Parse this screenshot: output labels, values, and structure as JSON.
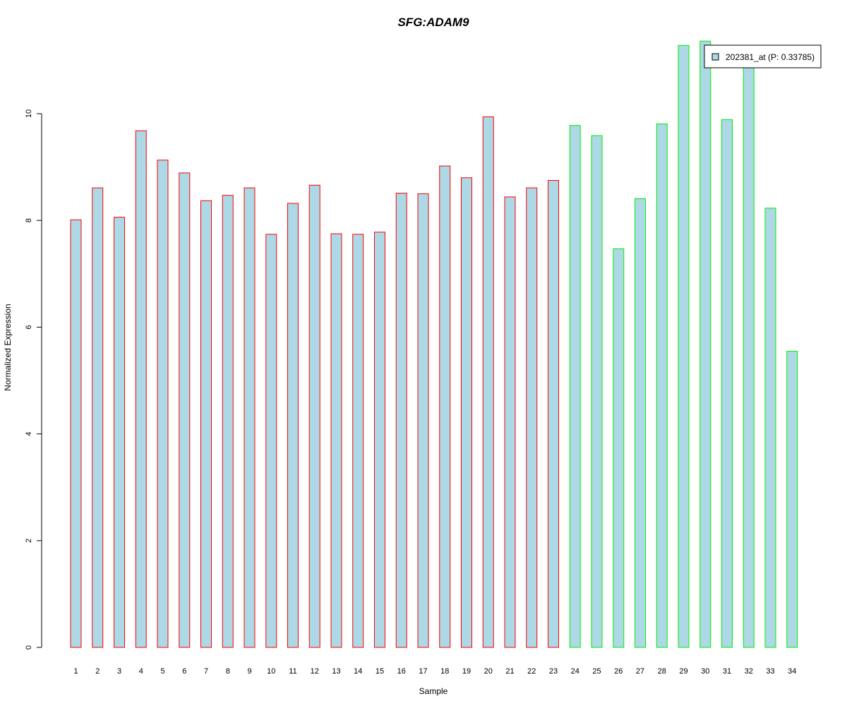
{
  "chart_data": {
    "type": "bar",
    "title": "SFG:ADAM9",
    "title_color": "#0000cc",
    "xlabel": "Sample",
    "ylabel": "Normalized Expression",
    "ylim": [
      0,
      11.4
    ],
    "yticks": [
      0,
      2,
      4,
      6,
      8,
      10
    ],
    "categories": [
      "1",
      "2",
      "3",
      "4",
      "5",
      "6",
      "7",
      "8",
      "9",
      "10",
      "11",
      "12",
      "13",
      "14",
      "15",
      "16",
      "17",
      "18",
      "19",
      "20",
      "21",
      "22",
      "23",
      "24",
      "25",
      "26",
      "27",
      "28",
      "29",
      "30",
      "31",
      "32",
      "33",
      "34"
    ],
    "series": [
      {
        "name": "202381_at (P: 0.33785)",
        "fill": "#add8e6",
        "values": [
          8.01,
          8.61,
          8.06,
          9.68,
          9.13,
          8.89,
          8.37,
          8.47,
          8.61,
          7.74,
          8.32,
          8.66,
          7.75,
          7.74,
          7.78,
          8.51,
          8.5,
          9.02,
          8.8,
          9.94,
          8.44,
          8.61,
          8.75,
          9.78,
          9.59,
          7.47,
          8.41,
          9.81,
          11.28,
          11.36,
          9.89,
          10.98,
          8.23,
          5.55
        ]
      }
    ],
    "bar_outline_colors": [
      "#ff0000",
      "#ff0000",
      "#ff0000",
      "#ff0000",
      "#ff0000",
      "#ff0000",
      "#ff0000",
      "#ff0000",
      "#ff0000",
      "#ff0000",
      "#ff0000",
      "#ff0000",
      "#ff0000",
      "#ff0000",
      "#ff0000",
      "#ff0000",
      "#ff0000",
      "#ff0000",
      "#ff0000",
      "#ff0000",
      "#ff0000",
      "#ff0000",
      "#ff0000",
      "#00ee00",
      "#00ee00",
      "#00ee00",
      "#00ee00",
      "#00ee00",
      "#00ee00",
      "#00ee00",
      "#00ee00",
      "#00ee00",
      "#00ee00",
      "#00ee00"
    ],
    "legend": {
      "label": "202381_at (P: 0.33785)",
      "placement": "top-right"
    },
    "grid": false
  }
}
